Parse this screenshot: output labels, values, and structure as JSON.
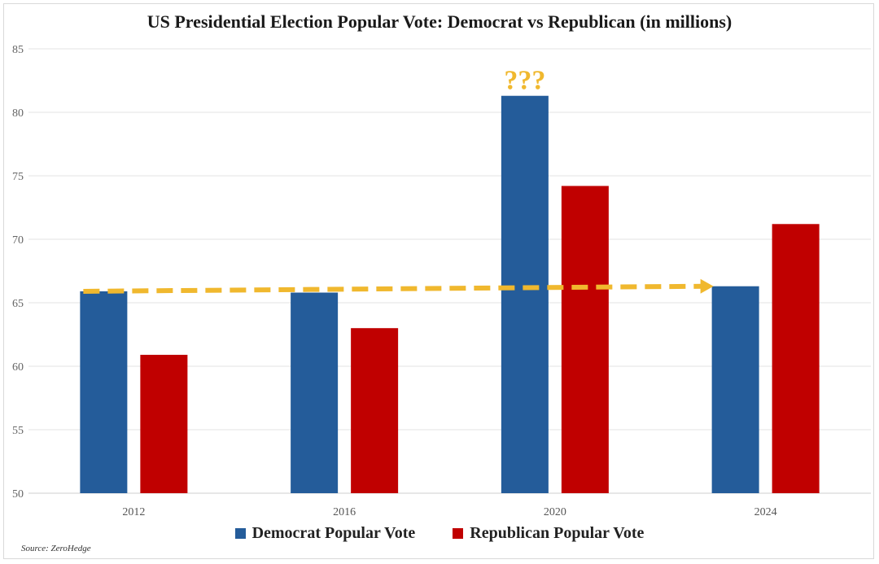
{
  "chart_data": {
    "type": "bar",
    "title": "US Presidential Election Popular Vote: Democrat vs Republican (in millions)",
    "categories": [
      "2012",
      "2016",
      "2020",
      "2024"
    ],
    "series": [
      {
        "name": "Democrat Popular Vote",
        "color": "#245c9a",
        "values": [
          65.9,
          65.8,
          81.3,
          66.3
        ]
      },
      {
        "name": "Republican Popular Vote",
        "color": "#c00000",
        "values": [
          60.9,
          63.0,
          74.2,
          71.2
        ]
      }
    ],
    "ylim": [
      50,
      85
    ],
    "yticks": [
      "50",
      "55",
      "60",
      "65",
      "70",
      "75",
      "80",
      "85"
    ],
    "grid": true,
    "legend_position": "bottom",
    "annotations": [
      {
        "text": "???",
        "category": "2020",
        "series": "Democrat Popular Vote",
        "color": "#f0b82e"
      }
    ],
    "trend_arrow": {
      "color": "#f0b82e",
      "style": "dashed",
      "from": {
        "x": "2012",
        "y": 65.9
      },
      "to": {
        "x": "2024",
        "y": 66.3
      }
    },
    "source": "Source: ZeroHedge"
  }
}
